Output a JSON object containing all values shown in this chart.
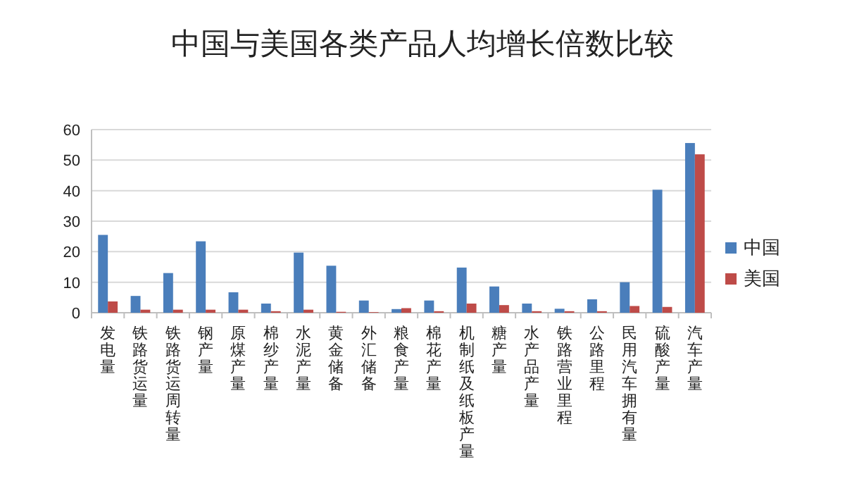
{
  "chart_data": {
    "type": "bar",
    "title": "中国与美国各类产品人均增长倍数比较",
    "categories": [
      "发电量",
      "铁路货运量",
      "铁路货运周转量",
      "钢产量",
      "原煤产量",
      "棉纱产量",
      "水泥产量",
      "黄金储备",
      "外汇储备",
      "粮食产量",
      "棉花产量",
      "机制纸及纸板产量",
      "糖产量",
      "水产品产量",
      "铁路营业里程",
      "公路里程",
      "民用汽车拥有量",
      "硫酸产量",
      "汽车产量"
    ],
    "series": [
      {
        "name": "中国",
        "color": "#4a7ebb",
        "values": [
          25.5,
          5.5,
          13,
          23.4,
          6.7,
          3,
          19.7,
          15.4,
          4,
          1.2,
          4,
          14.8,
          8.6,
          3,
          1.3,
          4.4,
          10,
          40.3,
          55.6
        ]
      },
      {
        "name": "美国",
        "color": "#be4b48",
        "values": [
          3.7,
          1,
          1,
          1,
          1,
          0.5,
          1,
          0.3,
          0.2,
          1.5,
          0.5,
          3,
          2.5,
          0.5,
          0.5,
          0.5,
          2.2,
          1.9,
          51.9
        ]
      }
    ],
    "ylim": [
      0,
      60
    ],
    "yticks": [
      0,
      10,
      20,
      30,
      40,
      50,
      60
    ],
    "grid": "y",
    "legend": "right"
  }
}
